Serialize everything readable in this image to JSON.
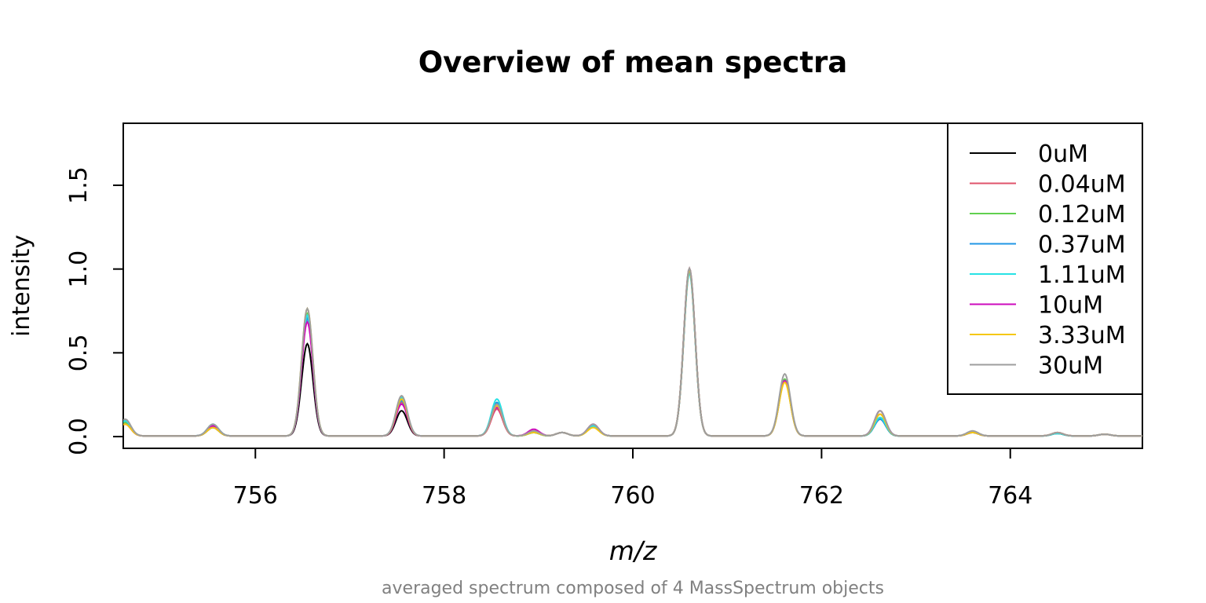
{
  "chart_data": {
    "type": "line",
    "title": "Overview of mean spectra",
    "subtitle": "averaged spectrum composed of 4 MassSpectrum objects",
    "xlabel": "m/z",
    "ylabel": "intensity",
    "xlim": [
      754.6,
      765.4
    ],
    "ylim": [
      -0.07,
      1.87
    ],
    "x_ticks": [
      756,
      758,
      760,
      762,
      764
    ],
    "y_ticks": [
      0.0,
      0.5,
      1.0,
      1.5
    ],
    "x_tick_labels": [
      "756",
      "758",
      "760",
      "762",
      "764"
    ],
    "y_tick_labels": [
      "0.0",
      "0.5",
      "1.0",
      "1.5"
    ],
    "grid": false,
    "legend_position": "top-right",
    "peaks_mz": [
      754.62,
      755.55,
      756.55,
      757.55,
      758.56,
      758.95,
      759.25,
      759.58,
      760.6,
      761.61,
      762.62,
      763.6,
      764.5,
      765.0
    ],
    "peak_width": 0.06,
    "series": [
      {
        "name": "0uM",
        "color": "#000000",
        "peak_heights": [
          0.09,
          0.05,
          0.55,
          0.15,
          0.19,
          0.02,
          0.02,
          0.06,
          0.99,
          0.33,
          0.1,
          0.02,
          0.015,
          0.01
        ]
      },
      {
        "name": "0.04uM",
        "color": "#DF536B",
        "peak_heights": [
          0.08,
          0.06,
          0.7,
          0.2,
          0.16,
          0.03,
          0.02,
          0.06,
          1.0,
          0.33,
          0.13,
          0.02,
          0.02,
          0.01
        ]
      },
      {
        "name": "0.12uM",
        "color": "#61D04F",
        "peak_heights": [
          0.08,
          0.06,
          0.73,
          0.22,
          0.2,
          0.02,
          0.02,
          0.06,
          0.98,
          0.34,
          0.11,
          0.02,
          0.015,
          0.01
        ]
      },
      {
        "name": "0.37uM",
        "color": "#2297E6",
        "peak_heights": [
          0.09,
          0.06,
          0.7,
          0.21,
          0.2,
          0.02,
          0.02,
          0.06,
          0.98,
          0.33,
          0.1,
          0.02,
          0.015,
          0.01
        ]
      },
      {
        "name": "1.11uM",
        "color": "#28E2E5",
        "peak_heights": [
          0.09,
          0.07,
          0.72,
          0.23,
          0.22,
          0.02,
          0.02,
          0.06,
          0.97,
          0.33,
          0.11,
          0.02,
          0.015,
          0.01
        ]
      },
      {
        "name": "10uM",
        "color": "#CD0BBC",
        "peak_heights": [
          0.07,
          0.06,
          0.68,
          0.19,
          0.17,
          0.04,
          0.02,
          0.07,
          0.99,
          0.33,
          0.15,
          0.02,
          0.02,
          0.01
        ]
      },
      {
        "name": "3.33uM",
        "color": "#F5C710",
        "peak_heights": [
          0.07,
          0.05,
          0.76,
          0.22,
          0.18,
          0.02,
          0.02,
          0.05,
          0.99,
          0.32,
          0.13,
          0.02,
          0.02,
          0.01
        ]
      },
      {
        "name": "30uM",
        "color": "#9E9E9E",
        "peak_heights": [
          0.1,
          0.07,
          0.76,
          0.24,
          0.19,
          0.03,
          0.02,
          0.07,
          1.0,
          0.37,
          0.15,
          0.03,
          0.02,
          0.01
        ]
      }
    ]
  }
}
